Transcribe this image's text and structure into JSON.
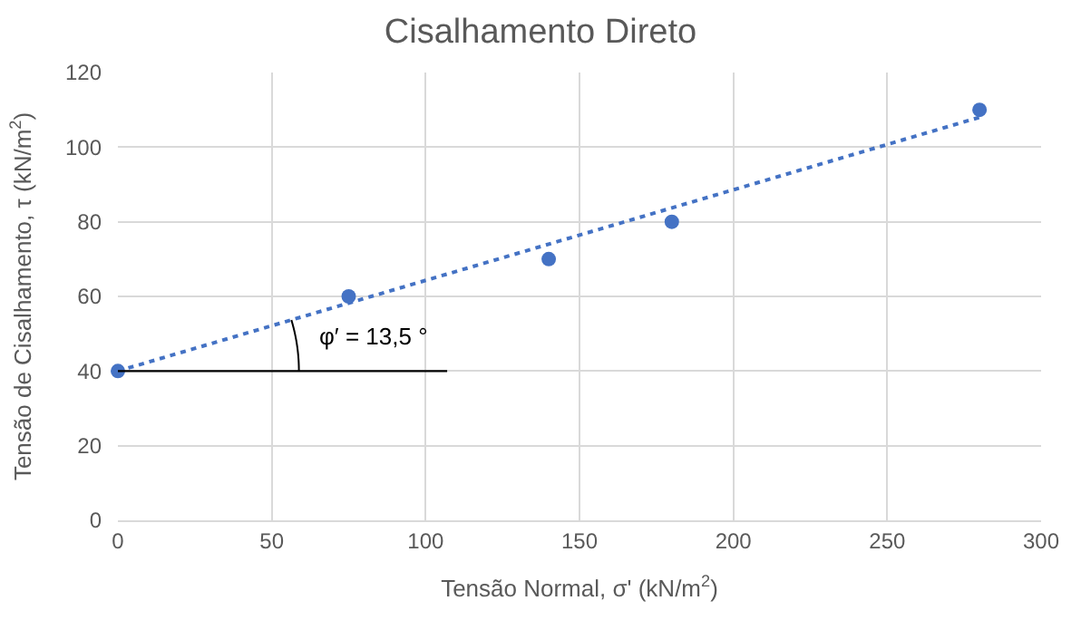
{
  "chart_data": {
    "type": "scatter",
    "title": "Cisalhamento Direto",
    "xlabel": "Tensão Normal, σ' (kN/m$^{2}$)",
    "ylabel": "Tensão de Cisalhamento, τ (kN/m$^{2}$)",
    "xlim": [
      0,
      300
    ],
    "xticks": [
      0,
      50,
      100,
      150,
      200,
      250,
      300
    ],
    "ylim": [
      0,
      120
    ],
    "yticks": [
      0,
      20,
      40,
      60,
      80,
      100,
      120
    ],
    "grid": true,
    "series": [
      {
        "color": "#4472c4",
        "marker": "circle",
        "x": [
          0,
          75,
          140,
          180,
          280
        ],
        "values": [
          40,
          60,
          70,
          80,
          110
        ]
      },
      {
        "type": "line",
        "color": "#4472c4",
        "line_style": "dotted",
        "marker": "none",
        "x": [
          0,
          280
        ],
        "values": [
          40,
          108
        ]
      },
      {
        "type": "line",
        "color": "#000000",
        "line_style": "solid",
        "marker": "none",
        "x": [
          0,
          107
        ],
        "values": [
          40,
          40
        ]
      }
    ],
    "annotations": [
      "φ′ = 13,5 °"
    ]
  }
}
